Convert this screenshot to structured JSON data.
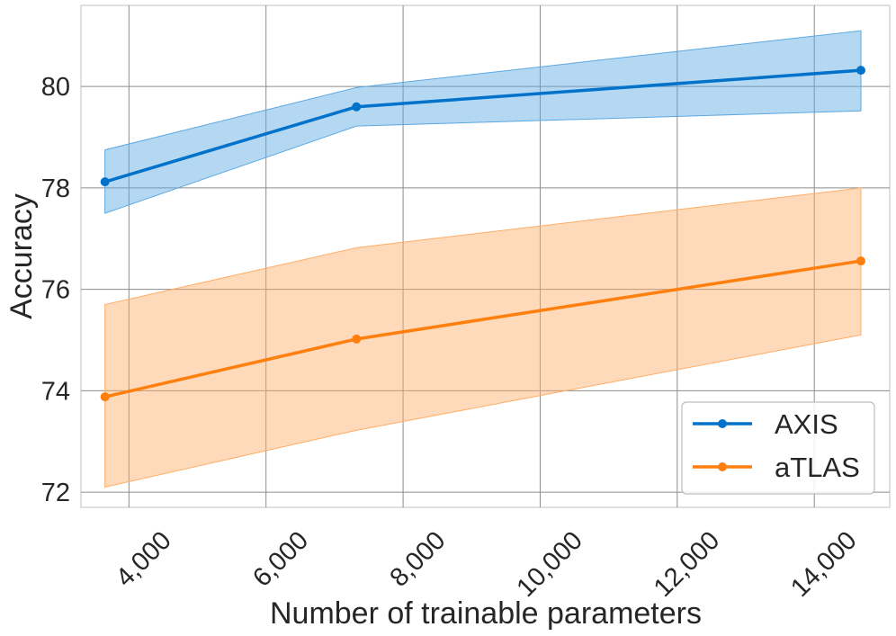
{
  "chart_data": {
    "type": "line",
    "title": "",
    "xlabel": "Number of trainable parameters",
    "ylabel": "Accuracy",
    "xlim": [
      3300,
      15100
    ],
    "ylim": [
      71.7,
      81.6
    ],
    "xticks": [
      4000,
      6000,
      8000,
      10000,
      12000,
      14000
    ],
    "xtick_labels": [
      "4,000",
      "6,000",
      "8,000",
      "10,000",
      "12,000",
      "14,000"
    ],
    "yticks": [
      72,
      74,
      76,
      78,
      80
    ],
    "ytick_labels": [
      "72",
      "74",
      "76",
      "78",
      "80"
    ],
    "grid": true,
    "legend_position": "bottom-right",
    "series": [
      {
        "name": "AXIS",
        "color": "#0072c9",
        "band_color": "#5aa8e3",
        "x": [
          3650,
          7320,
          14680
        ],
        "values": [
          78.12,
          79.6,
          80.32
        ],
        "lower": [
          77.5,
          79.22,
          79.52
        ],
        "upper": [
          78.75,
          79.98,
          81.1
        ]
      },
      {
        "name": "aTLAS",
        "color": "#ff7f0e",
        "band_color": "#ffad66",
        "x": [
          3650,
          7320,
          14680
        ],
        "values": [
          73.88,
          75.02,
          76.56
        ],
        "lower": [
          72.1,
          73.22,
          75.1
        ],
        "upper": [
          75.7,
          76.82,
          78.0
        ]
      }
    ]
  }
}
